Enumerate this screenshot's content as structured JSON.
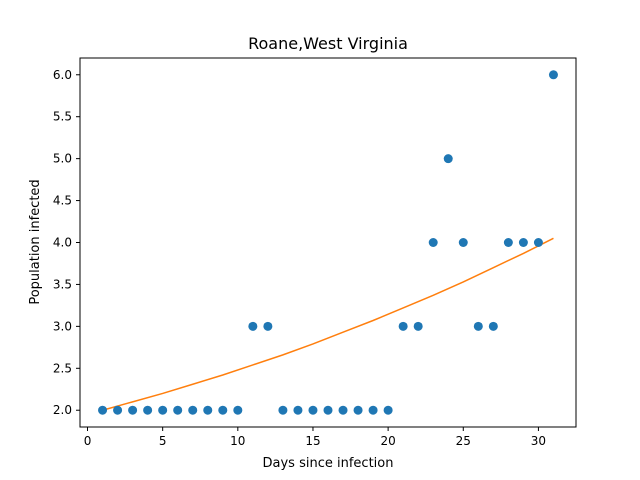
{
  "chart_data": {
    "type": "scatter",
    "title": "Roane,West Virginia",
    "xlabel": "Days since infection",
    "ylabel": "Population infected",
    "xlim": [
      -0.5,
      32.5
    ],
    "ylim": [
      1.8,
      6.2
    ],
    "xticks": [
      0,
      5,
      10,
      15,
      20,
      25,
      30
    ],
    "yticks": [
      2.0,
      2.5,
      3.0,
      3.5,
      4.0,
      4.5,
      5.0,
      5.5,
      6.0
    ],
    "grid": false,
    "series": [
      {
        "type": "scatter",
        "color": "#1f77b4",
        "x": [
          1,
          2,
          3,
          4,
          5,
          6,
          7,
          8,
          9,
          10,
          11,
          12,
          13,
          14,
          15,
          16,
          17,
          18,
          19,
          20,
          21,
          22,
          23,
          24,
          25,
          26,
          27,
          28,
          29,
          30,
          31
        ],
        "y": [
          2,
          2,
          2,
          2,
          2,
          2,
          2,
          2,
          2,
          2,
          3,
          3,
          2,
          2,
          2,
          2,
          2,
          2,
          2,
          2,
          3,
          3,
          4,
          5,
          4,
          3,
          3,
          4,
          4,
          4,
          6
        ]
      },
      {
        "type": "line",
        "color": "#ff7f0e",
        "x": [
          1,
          3,
          5,
          7,
          9,
          11,
          13,
          15,
          17,
          19,
          21,
          23,
          25,
          27,
          29,
          31
        ],
        "y": [
          2.0,
          2.1,
          2.2,
          2.31,
          2.42,
          2.54,
          2.66,
          2.79,
          2.93,
          3.07,
          3.22,
          3.37,
          3.53,
          3.7,
          3.87,
          4.05
        ]
      }
    ]
  }
}
